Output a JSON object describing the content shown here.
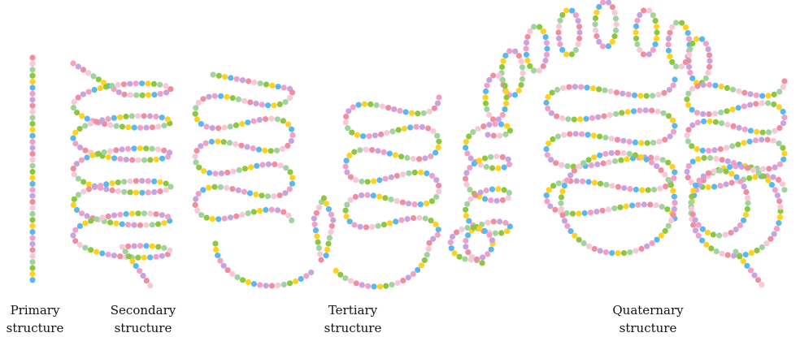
{
  "bead_colors": [
    "#f08ea0",
    "#f7c8d8",
    "#9fd49f",
    "#8dc63f",
    "#ffd21f",
    "#58b8f0",
    "#f3a0c8",
    "#c7a3e0"
  ],
  "panels": [
    {
      "id": "primary",
      "line1": "Primary",
      "line2": "structure"
    },
    {
      "id": "secondary",
      "line1": "Secondary",
      "line2": "structure"
    },
    {
      "id": "tertiary",
      "line1": "Tertiary",
      "line2": "structure"
    },
    {
      "id": "quaternary",
      "line1": "Quaternary",
      "line2": "structure"
    }
  ]
}
